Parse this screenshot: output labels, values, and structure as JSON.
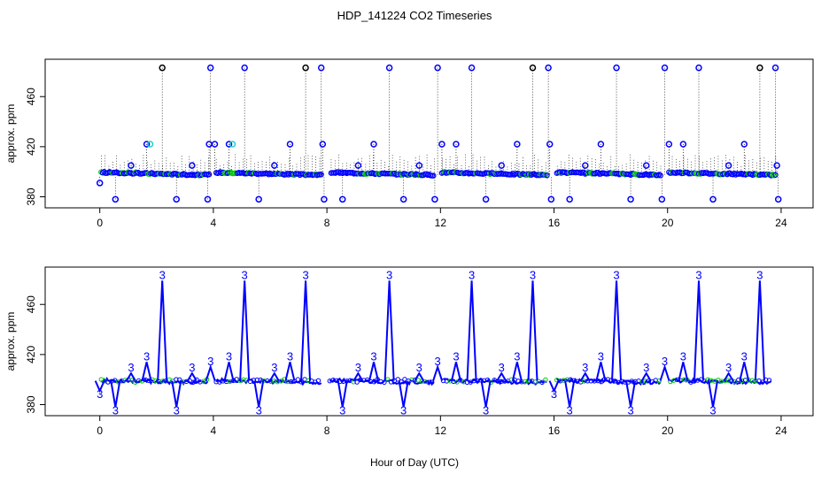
{
  "chart_data": [
    {
      "type": "scatter",
      "title": "HDP_141224  CO2 Timeseries",
      "xlabel": "",
      "ylabel": "approx. ppm",
      "xlim": [
        -1.8,
        25
      ],
      "ylim": [
        374,
        487
      ],
      "xticks": [
        "0",
        "4",
        "8",
        "12",
        "16",
        "20",
        "24"
      ],
      "yticks": [
        "380",
        "420",
        "460"
      ],
      "colors": {
        "main": "#0000ff",
        "secondary": "#22cccc",
        "pale": "#00cc00",
        "outlier": "#000000"
      },
      "series": [
        {
          "values": [
            [
              0.0,
              391
            ],
            [
              0.55,
              378
            ],
            [
              1.1,
              405
            ],
            [
              1.65,
              422
            ],
            [
              2.2,
              483
            ],
            [
              2.7,
              378
            ],
            [
              3.25,
              405
            ],
            [
              3.8,
              378
            ],
            [
              3.85,
              422
            ],
            [
              3.9,
              483
            ],
            [
              4.05,
              422
            ],
            [
              4.55,
              422
            ],
            [
              5.1,
              483
            ],
            [
              5.6,
              378
            ],
            [
              6.15,
              405
            ],
            [
              6.7,
              422
            ],
            [
              7.25,
              483
            ],
            [
              7.8,
              483
            ],
            [
              7.85,
              422
            ],
            [
              7.9,
              378
            ],
            [
              8.55,
              378
            ],
            [
              9.1,
              405
            ],
            [
              9.65,
              422
            ],
            [
              10.2,
              483
            ],
            [
              10.7,
              378
            ],
            [
              11.25,
              405
            ],
            [
              11.8,
              378
            ],
            [
              11.9,
              483
            ],
            [
              12.05,
              422
            ],
            [
              12.55,
              422
            ],
            [
              13.1,
              483
            ],
            [
              13.6,
              378
            ],
            [
              14.15,
              405
            ],
            [
              14.7,
              422
            ],
            [
              15.25,
              483
            ],
            [
              15.8,
              483
            ],
            [
              15.85,
              422
            ],
            [
              15.9,
              378
            ],
            [
              16.55,
              378
            ],
            [
              17.1,
              405
            ],
            [
              17.65,
              422
            ],
            [
              18.2,
              483
            ],
            [
              18.7,
              378
            ],
            [
              19.25,
              405
            ],
            [
              19.8,
              378
            ],
            [
              19.9,
              483
            ],
            [
              20.05,
              422
            ],
            [
              20.55,
              422
            ],
            [
              21.1,
              483
            ],
            [
              21.6,
              378
            ],
            [
              22.15,
              405
            ],
            [
              22.7,
              422
            ],
            [
              23.25,
              483
            ],
            [
              23.8,
              483
            ],
            [
              23.85,
              405
            ],
            [
              23.9,
              378
            ]
          ]
        }
      ]
    },
    {
      "type": "line",
      "title": "",
      "xlabel": "Hour of Day (UTC)",
      "ylabel": "approx. ppm",
      "xlim": [
        -1.8,
        25
      ],
      "ylim": [
        374,
        487
      ],
      "xticks": [
        "0",
        "4",
        "8",
        "12",
        "16",
        "20",
        "24"
      ],
      "yticks": [
        "380",
        "420",
        "460"
      ],
      "point_symbol": "3",
      "series": [
        {
          "values": [
            [
              0.0,
              391
            ],
            [
              0.55,
              378
            ],
            [
              1.1,
              405
            ],
            [
              1.65,
              414
            ],
            [
              2.2,
              479
            ],
            [
              2.7,
              378
            ],
            [
              3.25,
              405
            ],
            [
              3.9,
              410
            ],
            [
              4.55,
              414
            ],
            [
              5.1,
              479
            ],
            [
              5.6,
              378
            ],
            [
              6.15,
              405
            ],
            [
              6.7,
              414
            ],
            [
              7.25,
              479
            ],
            [
              8.55,
              378
            ],
            [
              9.1,
              405
            ],
            [
              9.65,
              414
            ],
            [
              10.2,
              479
            ],
            [
              10.7,
              378
            ],
            [
              11.25,
              405
            ],
            [
              11.9,
              410
            ],
            [
              12.55,
              414
            ],
            [
              13.1,
              479
            ],
            [
              13.6,
              378
            ],
            [
              14.15,
              405
            ],
            [
              14.7,
              414
            ],
            [
              15.25,
              479
            ],
            [
              16.0,
              391
            ],
            [
              16.55,
              378
            ],
            [
              17.1,
              405
            ],
            [
              17.65,
              414
            ],
            [
              18.2,
              479
            ],
            [
              18.7,
              378
            ],
            [
              19.25,
              405
            ],
            [
              19.9,
              410
            ],
            [
              20.55,
              414
            ],
            [
              21.1,
              479
            ],
            [
              21.6,
              378
            ],
            [
              22.15,
              405
            ],
            [
              22.7,
              414
            ],
            [
              23.25,
              479
            ]
          ]
        }
      ]
    }
  ]
}
